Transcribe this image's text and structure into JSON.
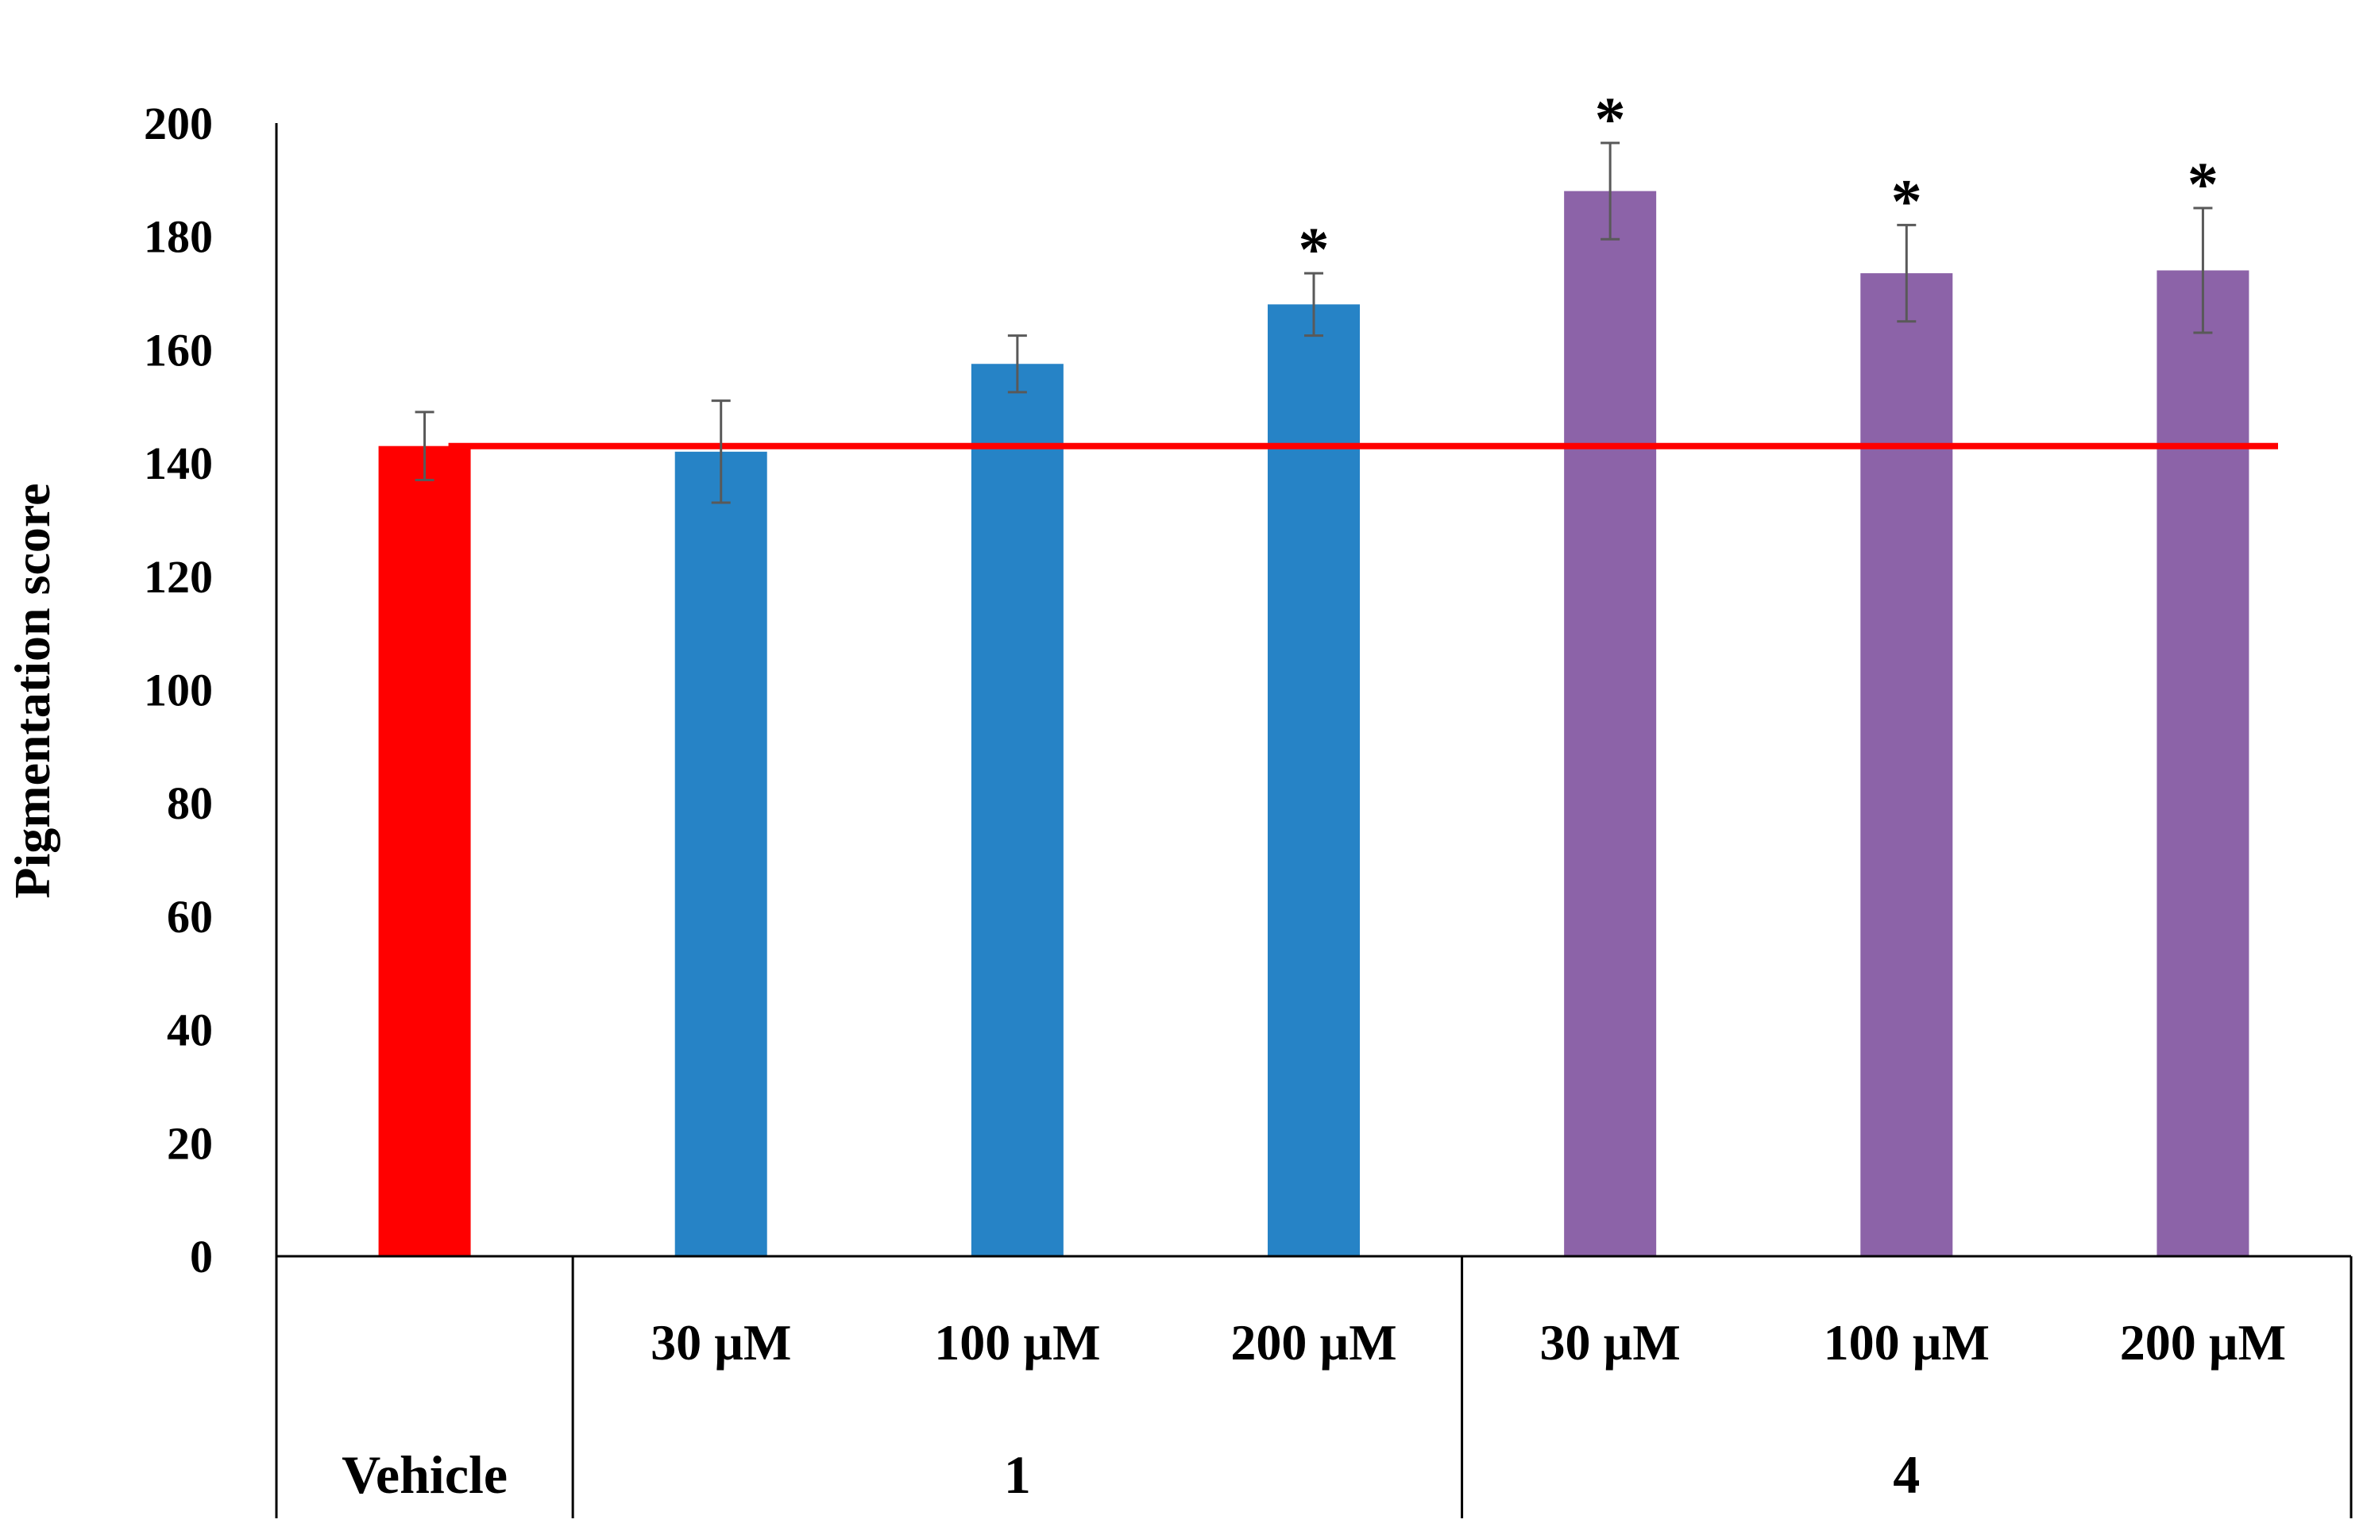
{
  "chart_data": {
    "type": "bar",
    "title": "",
    "xlabel": "",
    "ylabel": "Pigmentation score",
    "ylim": [
      0,
      200
    ],
    "yticks": [
      0,
      20,
      40,
      60,
      80,
      100,
      120,
      140,
      160,
      180,
      200
    ],
    "grid": false,
    "legend": "none",
    "bars": [
      {
        "label": "",
        "group": "Vehicle",
        "value": 143,
        "error": 6,
        "color": "#ff0000",
        "sig": ""
      },
      {
        "label": "30 µM",
        "group": "1",
        "value": 142,
        "error": 9,
        "color": "#2683c6",
        "sig": ""
      },
      {
        "label": "100 µM",
        "group": "1",
        "value": 157.5,
        "error": 5,
        "color": "#2683c6",
        "sig": ""
      },
      {
        "label": "200 µM",
        "group": "1",
        "value": 168,
        "error": 5.5,
        "color": "#2683c6",
        "sig": "*"
      },
      {
        "label": "30 µM",
        "group": "4",
        "value": 188,
        "error": 8.5,
        "color": "#8c63a8",
        "sig": "*"
      },
      {
        "label": "100 µM",
        "group": "4",
        "value": 173.5,
        "error": 8.5,
        "color": "#8c63a8",
        "sig": "*"
      },
      {
        "label": "200 µM",
        "group": "4",
        "value": 174,
        "error": 11,
        "color": "#8c63a8",
        "sig": "*"
      }
    ],
    "groups": [
      "Vehicle",
      "1",
      "4"
    ],
    "reference_line": {
      "value": 143,
      "color": "#ff0000"
    }
  }
}
